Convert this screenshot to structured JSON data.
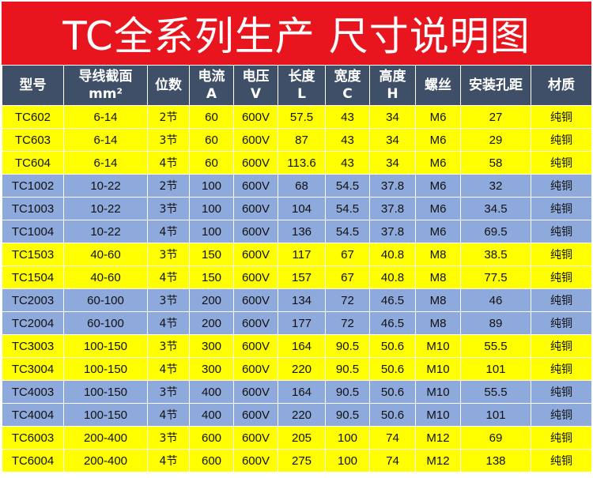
{
  "title": "TC全系列生产 尺寸说明图",
  "colors": {
    "title_bg": "#e8141e",
    "header_bg": "#3f4f67",
    "row_yellow": "#ffff00",
    "row_blue": "#8ea9db"
  },
  "headers": [
    {
      "line1": "型号",
      "line2": ""
    },
    {
      "line1": "导线截面",
      "line2": "mm²"
    },
    {
      "line1": "位数",
      "line2": ""
    },
    {
      "line1": "电流",
      "line2": "A"
    },
    {
      "line1": "电压",
      "line2": "V"
    },
    {
      "line1": "长度",
      "line2": "L"
    },
    {
      "line1": "宽度",
      "line2": "C"
    },
    {
      "line1": "高度",
      "line2": "H"
    },
    {
      "line1": "螺丝",
      "line2": ""
    },
    {
      "line1": "安装孔距",
      "line2": ""
    },
    {
      "line1": "材质",
      "line2": ""
    }
  ],
  "rows": [
    {
      "group": "yellow",
      "cells": [
        "TC602",
        "6-14",
        "2节",
        "60",
        "600V",
        "57.5",
        "43",
        "34",
        "M6",
        "27",
        "纯铜"
      ]
    },
    {
      "group": "yellow",
      "cells": [
        "TC603",
        "6-14",
        "3节",
        "60",
        "600V",
        "87",
        "43",
        "34",
        "M6",
        "29",
        "纯铜"
      ]
    },
    {
      "group": "yellow",
      "cells": [
        "TC604",
        "6-14",
        "4节",
        "60",
        "600V",
        "113.6",
        "43",
        "34",
        "M6",
        "58",
        "纯铜"
      ]
    },
    {
      "group": "blue",
      "cells": [
        "TC1002",
        "10-22",
        "2节",
        "100",
        "600V",
        "68",
        "54.5",
        "37.8",
        "M6",
        "32",
        "纯铜"
      ]
    },
    {
      "group": "blue",
      "cells": [
        "TC1003",
        "10-22",
        "3节",
        "100",
        "600V",
        "104",
        "54.5",
        "37.8",
        "M6",
        "34.5",
        "纯铜"
      ]
    },
    {
      "group": "blue",
      "cells": [
        "TC1004",
        "10-22",
        "4节",
        "100",
        "600V",
        "136",
        "54.5",
        "37.8",
        "M6",
        "69.5",
        "纯铜"
      ]
    },
    {
      "group": "yellow",
      "cells": [
        "TC1503",
        "40-60",
        "3节",
        "150",
        "600V",
        "117",
        "67",
        "40.8",
        "M8",
        "38.5",
        "纯铜"
      ]
    },
    {
      "group": "yellow",
      "cells": [
        "TC1504",
        "40-60",
        "4节",
        "150",
        "600V",
        "157",
        "67",
        "40.8",
        "M8",
        "77.5",
        "纯铜"
      ]
    },
    {
      "group": "blue",
      "cells": [
        "TC2003",
        "60-100",
        "3节",
        "200",
        "600V",
        "134",
        "72",
        "46.5",
        "M8",
        "46",
        "纯铜"
      ]
    },
    {
      "group": "blue",
      "cells": [
        "TC2004",
        "60-100",
        "4节",
        "200",
        "600V",
        "177",
        "72",
        "46.5",
        "M8",
        "89",
        "纯铜"
      ]
    },
    {
      "group": "yellow",
      "cells": [
        "TC3003",
        "100-150",
        "3节",
        "300",
        "600V",
        "164",
        "90.5",
        "50.6",
        "M10",
        "55.5",
        "纯铜"
      ]
    },
    {
      "group": "yellow",
      "cells": [
        "TC3004",
        "100-150",
        "4节",
        "300",
        "600V",
        "220",
        "90.5",
        "50.6",
        "M10",
        "101",
        "纯铜"
      ]
    },
    {
      "group": "blue",
      "cells": [
        "TC4003",
        "100-150",
        "3节",
        "400",
        "600V",
        "164",
        "90.5",
        "50.6",
        "M10",
        "55.5",
        "纯铜"
      ]
    },
    {
      "group": "blue",
      "cells": [
        "TC4004",
        "100-150",
        "4节",
        "400",
        "600V",
        "220",
        "90.5",
        "50.6",
        "M10",
        "101",
        "纯铜"
      ]
    },
    {
      "group": "yellow",
      "cells": [
        "TC6003",
        "200-400",
        "3节",
        "600",
        "600V",
        "205",
        "100",
        "74",
        "M12",
        "69",
        "纯铜"
      ]
    },
    {
      "group": "yellow",
      "cells": [
        "TC6004",
        "200-400",
        "4节",
        "600",
        "600V",
        "275",
        "100",
        "74",
        "M12",
        "138",
        "纯铜"
      ]
    }
  ]
}
